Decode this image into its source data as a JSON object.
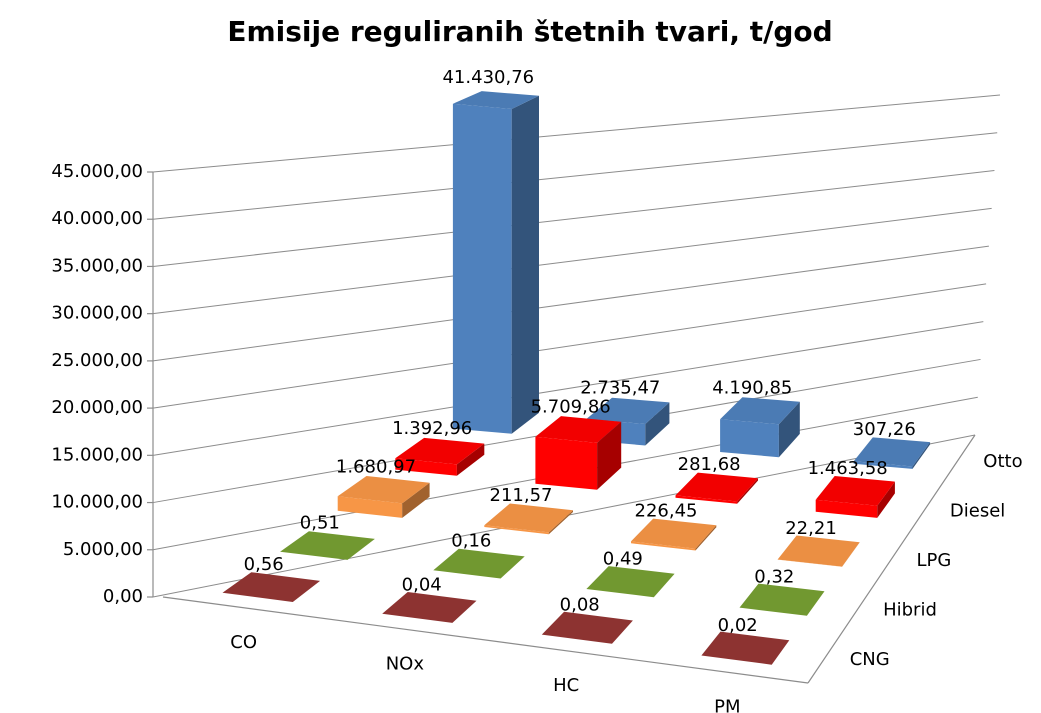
{
  "chart_data": {
    "type": "bar3d",
    "title": "Emisije reguliranih štetnih tvari, t/god",
    "categories": [
      "CO",
      "NOx",
      "HC",
      "PM"
    ],
    "series": [
      {
        "name": "Otto",
        "color": "#4f81bd",
        "values": [
          41430.76,
          2735.47,
          4190.85,
          307.26
        ],
        "value_labels": [
          "41.430,76",
          "2.735,47",
          "4.190,85",
          "307,26"
        ]
      },
      {
        "name": "Diesel",
        "color": "#ff0000",
        "values": [
          1392.96,
          5709.86,
          281.68,
          1463.58
        ],
        "value_labels": [
          "1.392,96",
          "5.709,86",
          "281,68",
          "1.463,58"
        ]
      },
      {
        "name": "LPG",
        "color": "#f79646",
        "values": [
          1680.97,
          211.57,
          226.45,
          22.21
        ],
        "value_labels": [
          "1.680,97",
          "211,57",
          "226,45",
          "22,21"
        ]
      },
      {
        "name": "Hibrid",
        "color": "#77a033",
        "values": [
          0.51,
          0.16,
          0.49,
          0.32
        ],
        "value_labels": [
          "0,51",
          "0,16",
          "0,49",
          "0,32"
        ]
      },
      {
        "name": "CNG",
        "color": "#943634",
        "values": [
          0.56,
          0.04,
          0.08,
          0.02
        ],
        "value_labels": [
          "0,56",
          "0,04",
          "0,08",
          "0,02"
        ]
      }
    ],
    "ylim": [
      0,
      45000
    ],
    "yticks": [
      {
        "value": 0,
        "label": "0,00"
      },
      {
        "value": 5000,
        "label": "5.000,00"
      },
      {
        "value": 10000,
        "label": "10.000,00"
      },
      {
        "value": 15000,
        "label": "15.000,00"
      },
      {
        "value": 20000,
        "label": "20.000,00"
      },
      {
        "value": 25000,
        "label": "25.000,00"
      },
      {
        "value": 30000,
        "label": "30.000,00"
      },
      {
        "value": 35000,
        "label": "35.000,00"
      },
      {
        "value": 40000,
        "label": "40.000,00"
      },
      {
        "value": 45000,
        "label": "45.000,00"
      }
    ],
    "grid": true
  }
}
